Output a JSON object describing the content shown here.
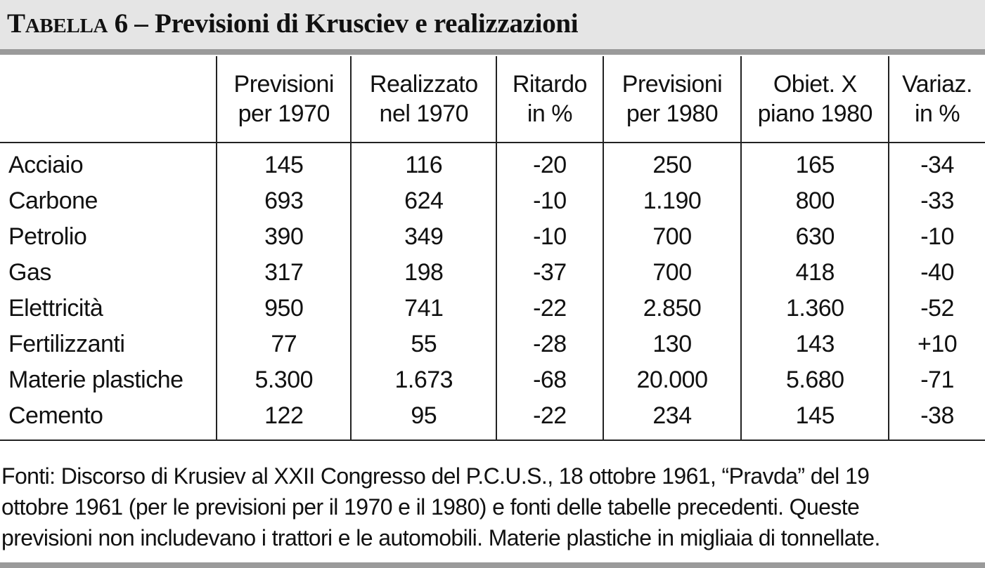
{
  "title": {
    "word_initial": "T",
    "word_rest": "ABELLA",
    "number": "6",
    "text": " – Previsioni di Krusciev e realizzazioni"
  },
  "table": {
    "headers": [
      "",
      "Previsioni\nper 1970",
      "Realizzato\nnel 1970",
      "Ritardo\nin %",
      "Previsioni\nper 1980",
      "Obiet. X\npiano 1980",
      "Variaz.\nin %"
    ],
    "rows": [
      [
        "Acciaio",
        "145",
        "116",
        "-20",
        "250",
        "165",
        "-34"
      ],
      [
        "Carbone",
        "693",
        "624",
        "-10",
        "1.190",
        "800",
        "-33"
      ],
      [
        "Petrolio",
        "390",
        "349",
        "-10",
        "700",
        "630",
        "-10"
      ],
      [
        "Gas",
        "317",
        "198",
        "-37",
        "700",
        "418",
        "-40"
      ],
      [
        "Elettricità",
        "950",
        "741",
        "-22",
        "2.850",
        "1.360",
        "-52"
      ],
      [
        "Fertilizzanti",
        "77",
        "55",
        "-28",
        "130",
        "143",
        "+10"
      ],
      [
        "Materie plastiche",
        "5.300",
        "1.673",
        "-68",
        "20.000",
        "5.680",
        "-71"
      ],
      [
        "Cemento",
        "122",
        "95",
        "-22",
        "234",
        "145",
        "-38"
      ]
    ]
  },
  "note": "Fonti: Discorso di Krusiev al XXII Congresso del P.C.U.S., 18 ottobre 1961, “Pravda” del 19\nottobre 1961 (per le previsioni per il 1970 e il 1980) e fonti delle tabelle precedenti. Queste\nprevisioni non includevano i trattori e le automobili. Materie plastiche in migliaia di tonnellate."
}
